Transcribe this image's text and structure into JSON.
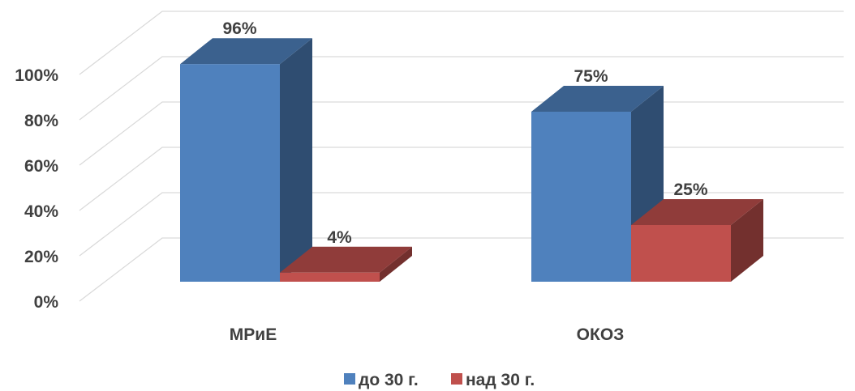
{
  "chart_data": {
    "type": "bar3d",
    "categories": [
      "МРиЕ",
      "ОКОЗ"
    ],
    "series": [
      {
        "name": "до 30 г.",
        "color": "#4f81bd",
        "values": [
          96,
          75
        ],
        "value_labels": [
          "96%",
          "75%"
        ]
      },
      {
        "name": "над 30 г.",
        "color": "#c0504d",
        "values": [
          4,
          25
        ],
        "value_labels": [
          "4%",
          "25%"
        ]
      }
    ],
    "ylim": [
      0,
      100
    ],
    "yticks": [
      {
        "value": 0,
        "label": "0%"
      },
      {
        "value": 20,
        "label": "20%"
      },
      {
        "value": 40,
        "label": "40%"
      },
      {
        "value": 60,
        "label": "60%"
      },
      {
        "value": 80,
        "label": "80%"
      },
      {
        "value": 100,
        "label": "100%"
      }
    ],
    "grid": true,
    "legend": "bottom"
  }
}
